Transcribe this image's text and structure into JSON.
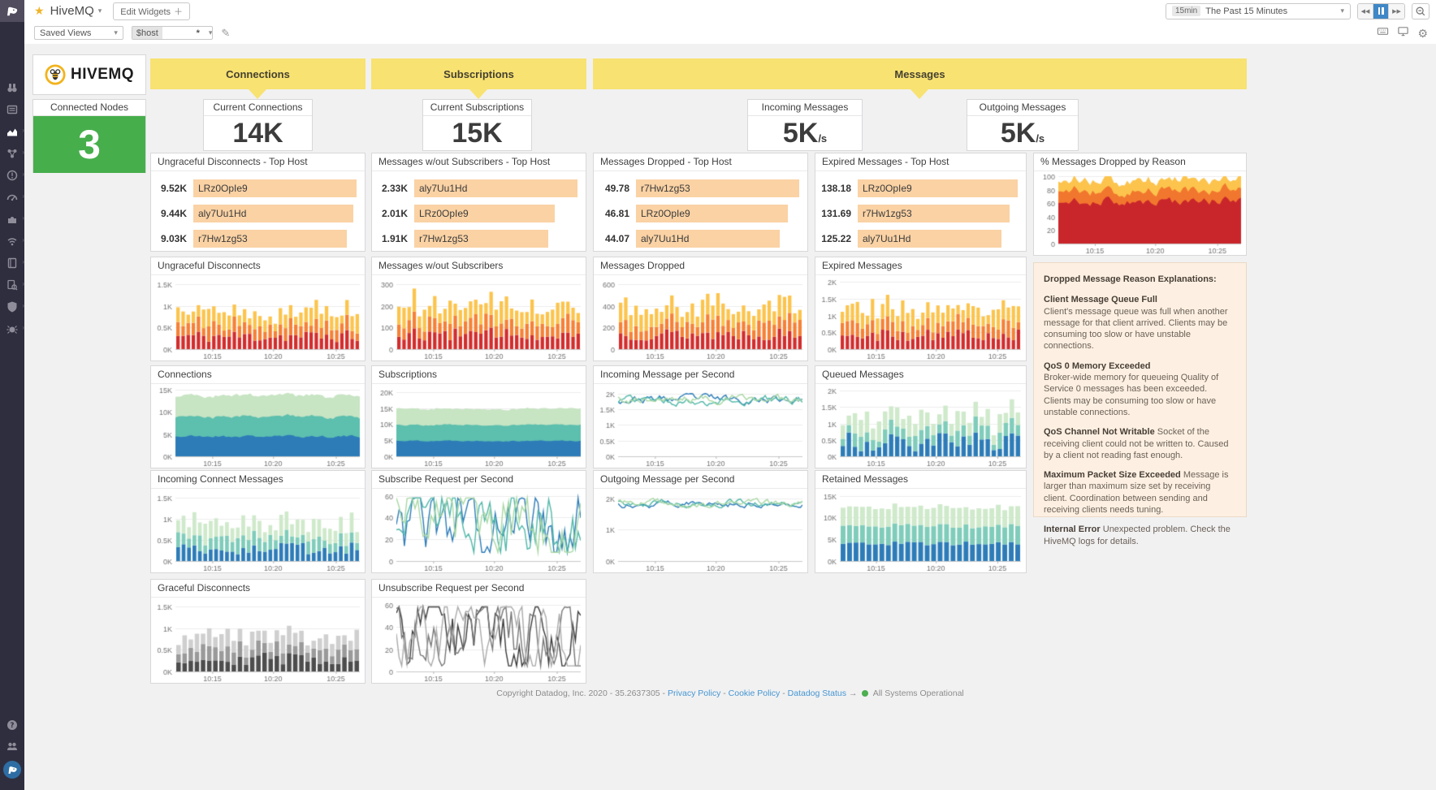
{
  "colors": {
    "sidebar_bg": "#2f2e3f",
    "banner_yellow": "#f8e272",
    "tile_green": "#47ae4c",
    "toplist_bar": "#fad2a4",
    "accent_blue": "#3f87c6",
    "link_blue": "#4596d1",
    "status_green": "#4caf50",
    "panel_cream": "#fdf0e2"
  },
  "icons": {
    "sidebar": [
      "watchdog",
      "events",
      "dashboards",
      "infrastructure",
      "monitors",
      "metrics",
      "integrations",
      "apm",
      "notebooks",
      "logs",
      "security",
      "synthetics"
    ],
    "sidebar_bottom": [
      "help",
      "team",
      "user-avatar"
    ],
    "header": [
      "datadog-logo",
      "star",
      "chevron-down",
      "rewind",
      "pause",
      "fast-forward",
      "zoom-out"
    ],
    "toolbar": [
      "pencil",
      "keyboard",
      "monitor",
      "gear"
    ]
  },
  "header": {
    "title": "HiveMQ",
    "edit_widgets_label": "Edit Widgets",
    "time_badge": "15min",
    "time_label": "The Past 15 Minutes"
  },
  "toolbar": {
    "saved_views_label": "Saved Views",
    "template_var_name": "$host",
    "template_var_value": "*"
  },
  "banners": {
    "connections": "Connections",
    "subscriptions": "Subscriptions",
    "messages": "Messages"
  },
  "brand": {
    "name": "HiveMQ",
    "wordmark": "HIVEMQ"
  },
  "cards": {
    "connected_nodes": {
      "label": "Connected Nodes",
      "value": "3"
    },
    "current_connections": {
      "label": "Current Connections",
      "value": "14K"
    },
    "current_subscriptions": {
      "label": "Current Subscriptions",
      "value": "15K"
    },
    "incoming_messages": {
      "label": "Incoming Messages",
      "value": "5K",
      "unit": "/s"
    },
    "outgoing_messages": {
      "label": "Outgoing Messages",
      "value": "5K",
      "unit": "/s"
    }
  },
  "toplists": {
    "ungraceful_disconnects": {
      "title": "Ungraceful Disconnects - Top Host",
      "rows": [
        {
          "value": "9.52K",
          "host": "LRz0OpIe9",
          "pct": 100
        },
        {
          "value": "9.44K",
          "host": "aly7Uu1Hd",
          "pct": 98
        },
        {
          "value": "9.03K",
          "host": "r7Hw1zg53",
          "pct": 94
        }
      ]
    },
    "messages_wout_subscribers": {
      "title": "Messages w/out Subscribers - Top Host",
      "rows": [
        {
          "value": "2.33K",
          "host": "aly7Uu1Hd",
          "pct": 100
        },
        {
          "value": "2.01K",
          "host": "LRz0OpIe9",
          "pct": 86
        },
        {
          "value": "1.91K",
          "host": "r7Hw1zg53",
          "pct": 82
        }
      ]
    },
    "messages_dropped": {
      "title": "Messages Dropped - Top Host",
      "rows": [
        {
          "value": "49.78",
          "host": "r7Hw1zg53",
          "pct": 100
        },
        {
          "value": "46.81",
          "host": "LRz0OpIe9",
          "pct": 93
        },
        {
          "value": "44.07",
          "host": "aly7Uu1Hd",
          "pct": 88
        }
      ]
    },
    "expired_messages": {
      "title": "Expired Messages - Top Host",
      "rows": [
        {
          "value": "138.18",
          "host": "LRz0OpIe9",
          "pct": 100
        },
        {
          "value": "131.69",
          "host": "r7Hw1zg53",
          "pct": 95
        },
        {
          "value": "125.22",
          "host": "aly7Uu1Hd",
          "pct": 90
        }
      ]
    }
  },
  "chart_data": {
    "ungraceful_disconnects_ts": {
      "title": "Ungraceful Disconnects",
      "type": "stacked_bar",
      "points": 36,
      "seed": 11,
      "y_max": 1600,
      "y_ticks": [
        [
          "0K",
          0
        ],
        [
          "0.5K",
          500
        ],
        [
          "1K",
          1000
        ],
        [
          "1.5K",
          1500
        ]
      ],
      "x_ticks": [
        "10:15",
        "10:20",
        "10:25"
      ],
      "series": [
        {
          "name": "s1",
          "color": "#d22d2d",
          "min": 150,
          "max": 450
        },
        {
          "name": "s2",
          "color": "#f58136",
          "min": 140,
          "max": 390
        },
        {
          "name": "s3",
          "color": "#fcc44d",
          "min": 150,
          "max": 450
        }
      ]
    },
    "messages_wout_subscribers_ts": {
      "title": "Messages w/out Subscribers",
      "type": "stacked_bar",
      "points": 36,
      "seed": 12,
      "y_max": 320,
      "y_ticks": [
        [
          "0",
          0
        ],
        [
          "100",
          100
        ],
        [
          "200",
          200
        ],
        [
          "300",
          300
        ]
      ],
      "x_ticks": [
        "10:15",
        "10:20",
        "10:25"
      ],
      "series": [
        {
          "name": "s1",
          "color": "#d22d2d",
          "min": 40,
          "max": 100
        },
        {
          "name": "s2",
          "color": "#f58136",
          "min": 40,
          "max": 90
        },
        {
          "name": "s3",
          "color": "#fcc44d",
          "min": 40,
          "max": 110
        }
      ]
    },
    "messages_dropped_ts": {
      "title": "Messages Dropped",
      "type": "stacked_bar",
      "points": 36,
      "seed": 13,
      "y_max": 640,
      "y_ticks": [
        [
          "0",
          0
        ],
        [
          "200",
          200
        ],
        [
          "400",
          400
        ],
        [
          "600",
          600
        ]
      ],
      "x_ticks": [
        "10:15",
        "10:20",
        "10:25"
      ],
      "series": [
        {
          "name": "s1",
          "color": "#d22d2d",
          "min": 80,
          "max": 200
        },
        {
          "name": "s2",
          "color": "#f58136",
          "min": 70,
          "max": 180
        },
        {
          "name": "s3",
          "color": "#fcc44d",
          "min": 80,
          "max": 220
        }
      ]
    },
    "expired_messages_ts": {
      "title": "Expired Messages",
      "type": "stacked_bar",
      "points": 36,
      "seed": 14,
      "y_max": 2050,
      "y_ticks": [
        [
          "0K",
          0
        ],
        [
          "0.5K",
          500
        ],
        [
          "1K",
          1000
        ],
        [
          "1.5K",
          1500
        ],
        [
          "2K",
          2000
        ]
      ],
      "x_ticks": [
        "10:15",
        "10:20",
        "10:25"
      ],
      "series": [
        {
          "name": "s1",
          "color": "#d22d2d",
          "min": 250,
          "max": 600
        },
        {
          "name": "s2",
          "color": "#f58136",
          "min": 200,
          "max": 500
        },
        {
          "name": "s3",
          "color": "#fcc44d",
          "min": 250,
          "max": 650
        }
      ]
    },
    "pct_messages_dropped": {
      "title": "% Messages Dropped by Reason",
      "type": "stacked_area",
      "points": 70,
      "seed": 15,
      "y_max": 100,
      "y_ticks": [
        [
          "0",
          0
        ],
        [
          "20",
          20
        ],
        [
          "40",
          40
        ],
        [
          "60",
          60
        ],
        [
          "80",
          80
        ],
        [
          "100",
          100
        ]
      ],
      "x_ticks": [
        "10:15",
        "10:20",
        "10:25"
      ],
      "series": [
        {
          "name": "s1",
          "color": "#c9262c",
          "min": 52,
          "max": 74
        },
        {
          "name": "s2",
          "color": "#f2772e",
          "min": 10,
          "max": 22
        },
        {
          "name": "s3",
          "color": "#fcc44d",
          "min": 10,
          "max": 22
        }
      ]
    },
    "connections_ts": {
      "title": "Connections",
      "type": "stacked_area",
      "points": 70,
      "seed": 21,
      "y_max": 15200,
      "y_ticks": [
        [
          "0K",
          0
        ],
        [
          "5K",
          5000
        ],
        [
          "10K",
          10000
        ],
        [
          "15K",
          15000
        ]
      ],
      "x_ticks": [
        "10:15",
        "10:20",
        "10:25"
      ],
      "series": [
        {
          "name": "s1",
          "color": "#2d7cb8",
          "min": 4000,
          "max": 5000
        },
        {
          "name": "s2",
          "color": "#5dbfae",
          "min": 4000,
          "max": 5000
        },
        {
          "name": "s3",
          "color": "#c7e4c3",
          "min": 4200,
          "max": 5200
        }
      ]
    },
    "subscriptions_ts": {
      "title": "Subscriptions",
      "type": "stacked_area",
      "points": 70,
      "seed": 22,
      "y_max": 21000,
      "y_ticks": [
        [
          "0K",
          0
        ],
        [
          "5K",
          5000
        ],
        [
          "10K",
          10000
        ],
        [
          "15K",
          15000
        ],
        [
          "20K",
          20000
        ]
      ],
      "x_ticks": [
        "10:15",
        "10:20",
        "10:25"
      ],
      "series": [
        {
          "name": "s1",
          "color": "#2d7cb8",
          "min": 4500,
          "max": 5200
        },
        {
          "name": "s2",
          "color": "#5dbfae",
          "min": 4700,
          "max": 5300
        },
        {
          "name": "s3",
          "color": "#c7e4c3",
          "min": 4700,
          "max": 5400
        }
      ]
    },
    "incoming_message_per_second": {
      "title": "Incoming Message per Second",
      "type": "line",
      "points": 90,
      "seed": 23,
      "walk": 0.55,
      "y_max": 2150,
      "y_ticks": [
        [
          "0K",
          0
        ],
        [
          "0.5K",
          500
        ],
        [
          "1K",
          1000
        ],
        [
          "1.5K",
          1500
        ],
        [
          "2K",
          2000
        ]
      ],
      "x_ticks": [
        "10:15",
        "10:20",
        "10:25"
      ],
      "series": [
        {
          "name": "s1",
          "color": "#2d7cb8",
          "min": 1650,
          "max": 2000
        },
        {
          "name": "s2",
          "color": "#52b8a8",
          "min": 1600,
          "max": 1950
        },
        {
          "name": "s3",
          "color": "#a9d8a4",
          "min": 1650,
          "max": 2000
        }
      ]
    },
    "queued_messages_ts": {
      "title": "Queued Messages",
      "type": "stacked_bar",
      "points": 30,
      "seed": 24,
      "y_max": 2050,
      "y_ticks": [
        [
          "0K",
          0
        ],
        [
          "0.5K",
          500
        ],
        [
          "1K",
          1000
        ],
        [
          "1.5K",
          1500
        ],
        [
          "2K",
          2000
        ]
      ],
      "x_ticks": [
        "10:15",
        "10:20",
        "10:25"
      ],
      "series": [
        {
          "name": "s1",
          "color": "#2d7cb8",
          "min": 100,
          "max": 750
        },
        {
          "name": "s2",
          "color": "#7fccba",
          "min": 150,
          "max": 500
        },
        {
          "name": "s3",
          "color": "#cfe9cb",
          "min": 250,
          "max": 650
        }
      ]
    },
    "incoming_connect_messages": {
      "title": "Incoming Connect Messages",
      "type": "stacked_bar",
      "points": 34,
      "seed": 25,
      "y_max": 1600,
      "y_ticks": [
        [
          "0K",
          0
        ],
        [
          "0.5K",
          500
        ],
        [
          "1K",
          1000
        ],
        [
          "1.5K",
          1500
        ]
      ],
      "x_ticks": [
        "10:15",
        "10:20",
        "10:25"
      ],
      "series": [
        {
          "name": "s1",
          "color": "#2d7cb8",
          "min": 150,
          "max": 450
        },
        {
          "name": "s2",
          "color": "#7fccba",
          "min": 150,
          "max": 400
        },
        {
          "name": "s3",
          "color": "#cfe9cb",
          "min": 200,
          "max": 550
        }
      ]
    },
    "subscribe_request_per_second": {
      "title": "Subscribe Request per Second",
      "type": "line",
      "points": 70,
      "seed": 26,
      "walk": 1.1,
      "y_max": 62,
      "y_ticks": [
        [
          "0",
          0
        ],
        [
          "20",
          20
        ],
        [
          "40",
          40
        ],
        [
          "60",
          60
        ]
      ],
      "x_ticks": [
        "10:15",
        "10:20",
        "10:25"
      ],
      "series": [
        {
          "name": "s1",
          "color": "#2d7cb8",
          "min": 8,
          "max": 58
        },
        {
          "name": "s2",
          "color": "#52b8a8",
          "min": 8,
          "max": 58
        },
        {
          "name": "s3",
          "color": "#a9d8a4",
          "min": 8,
          "max": 58
        }
      ]
    },
    "outgoing_message_per_second": {
      "title": "Outgoing Message per Second",
      "type": "line",
      "points": 90,
      "seed": 27,
      "walk": 0.55,
      "y_max": 2150,
      "y_ticks": [
        [
          "0K",
          0
        ],
        [
          "1K",
          1000
        ],
        [
          "2K",
          2000
        ]
      ],
      "x_ticks": [
        "10:15",
        "10:20",
        "10:25"
      ],
      "series": [
        {
          "name": "s1",
          "color": "#2d7cb8",
          "min": 1700,
          "max": 2000
        },
        {
          "name": "s2",
          "color": "#52b8a8",
          "min": 1700,
          "max": 1980
        },
        {
          "name": "s3",
          "color": "#a9d8a4",
          "min": 1700,
          "max": 2000
        }
      ]
    },
    "retained_messages_ts": {
      "title": "Retained Messages",
      "type": "stacked_bar",
      "points": 28,
      "seed": 28,
      "y_max": 15500,
      "y_ticks": [
        [
          "0K",
          0
        ],
        [
          "5K",
          5000
        ],
        [
          "10K",
          10000
        ],
        [
          "15K",
          15000
        ]
      ],
      "x_ticks": [
        "10:15",
        "10:20",
        "10:25"
      ],
      "series": [
        {
          "name": "s1",
          "color": "#2d7cb8",
          "min": 3600,
          "max": 4500
        },
        {
          "name": "s2",
          "color": "#7fccba",
          "min": 3700,
          "max": 4300
        },
        {
          "name": "s3",
          "color": "#cfe9cb",
          "min": 3900,
          "max": 4600
        }
      ]
    },
    "graceful_disconnects_ts": {
      "title": "Graceful Disconnects",
      "type": "stacked_bar",
      "points": 30,
      "seed": 29,
      "y_max": 1600,
      "y_ticks": [
        [
          "0K",
          0
        ],
        [
          "0.5K",
          500
        ],
        [
          "1K",
          1000
        ],
        [
          "1.5K",
          1500
        ]
      ],
      "x_ticks": [
        "10:15",
        "10:20",
        "10:25"
      ],
      "series": [
        {
          "name": "s1",
          "color": "#4d4d4d",
          "min": 150,
          "max": 450
        },
        {
          "name": "s2",
          "color": "#9a9a9a",
          "min": 150,
          "max": 400
        },
        {
          "name": "s3",
          "color": "#cfcfcf",
          "min": 150,
          "max": 450
        }
      ]
    },
    "unsubscribe_request_per_second": {
      "title": "Unsubscribe Request per Second",
      "type": "line",
      "points": 70,
      "seed": 30,
      "walk": 1.1,
      "y_max": 62,
      "y_ticks": [
        [
          "0",
          0
        ],
        [
          "20",
          20
        ],
        [
          "40",
          40
        ],
        [
          "60",
          60
        ]
      ],
      "x_ticks": [
        "10:15",
        "10:20",
        "10:25"
      ],
      "series": [
        {
          "name": "s1",
          "color": "#3c3c3c",
          "min": 5,
          "max": 58
        },
        {
          "name": "s2",
          "color": "#777777",
          "min": 5,
          "max": 58
        },
        {
          "name": "s3",
          "color": "#aaaaaa",
          "min": 5,
          "max": 58
        }
      ]
    }
  },
  "explanations": {
    "title": "Dropped Message Reason Explanations:",
    "items": [
      {
        "heading": "Client Message Queue Full",
        "body": "Client's message queue was full when another message for that client arrived. Clients may be consuming too slow or have unstable connections."
      },
      {
        "heading": "QoS 0 Memory Exceeded",
        "body": "Broker-wide memory for queueing Quality of Service 0 messages has been exceeded. Clients may be consuming too slow or have unstable connections."
      },
      {
        "heading": "QoS Channel Not Writable",
        "body": "Socket of the receiving client could not be written to. Caused by a client not reading fast enough."
      },
      {
        "heading": "Maximum Packet Size Exceeded",
        "body": "Message is larger than maximum size set by receiving client. Coordination between sending and receiving clients needs tuning."
      },
      {
        "heading": "Internal Error",
        "body": "Unexpected problem. Check the HiveMQ logs for details."
      }
    ]
  },
  "footer": {
    "copyright": "Copyright Datadog, Inc. 2020 - 35.2637305 -",
    "links": [
      "Privacy Policy",
      "Cookie Policy",
      "Datadog Status"
    ],
    "arrow": "→",
    "status": "All Systems Operational"
  }
}
